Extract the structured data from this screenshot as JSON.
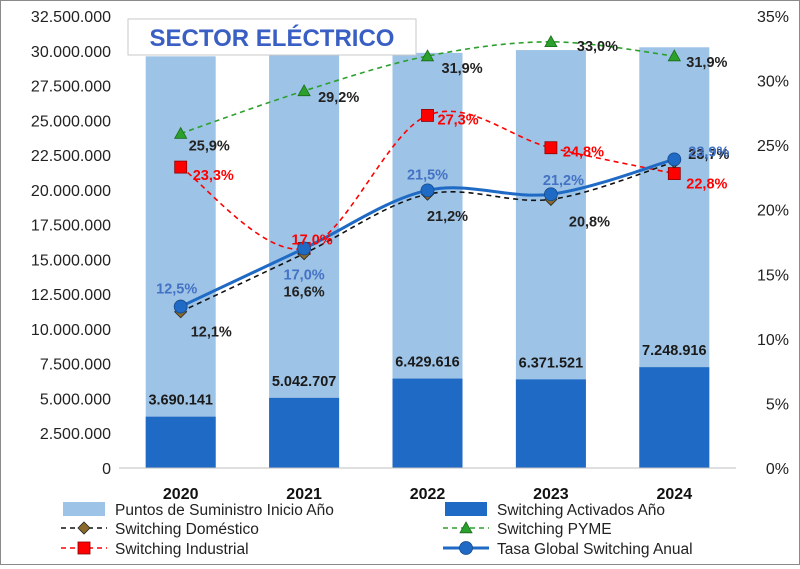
{
  "chart_data": {
    "type": "bar",
    "title": "SECTOR ELÉCTRICO",
    "categories": [
      "2020",
      "2021",
      "2022",
      "2023",
      "2024"
    ],
    "left_axis": {
      "min": 0,
      "max": 32500000,
      "step": 2500000,
      "tick_labels": [
        "0",
        "2.500.000",
        "5.000.000",
        "7.500.000",
        "10.000.000",
        "12.500.000",
        "15.000.000",
        "17.500.000",
        "20.000.000",
        "22.500.000",
        "25.000.000",
        "27.500.000",
        "30.000.000",
        "32.500.000"
      ]
    },
    "right_axis": {
      "min": 0,
      "max": 35,
      "step": 5,
      "tick_labels": [
        "0%",
        "5%",
        "10%",
        "15%",
        "20%",
        "25%",
        "30%",
        "35%"
      ]
    },
    "bar_series": [
      {
        "name": "Puntos de Suministro Inicio Año",
        "color": "#9dc3e6",
        "values": [
          29600000,
          29700000,
          29850000,
          30050000,
          30250000
        ]
      },
      {
        "name": "Switching Activados Año",
        "color": "#1f6ac4",
        "values": [
          3690141,
          5042707,
          6429616,
          6371521,
          7248916
        ],
        "labels": [
          "3.690.141",
          "5.042.707",
          "6.429.616",
          "6.371.521",
          "7.248.916"
        ]
      }
    ],
    "line_series": [
      {
        "name": "Switching Doméstico",
        "color": "#111111",
        "marker_color": "#8b6a2b",
        "dash": "dashed",
        "marker": "diamond",
        "values": [
          12.1,
          16.6,
          21.2,
          20.8,
          23.7
        ],
        "labels": [
          "12,1%",
          "16,6%",
          "21,2%",
          "20,8%",
          "23,7%"
        ]
      },
      {
        "name": "Switching PYME",
        "color": "#2ca02c",
        "dash": "dashed",
        "marker": "triangle",
        "values": [
          25.9,
          29.2,
          31.9,
          33.0,
          31.9
        ],
        "labels": [
          "25,9%",
          "29,2%",
          "31,9%",
          "33,0%",
          "31,9%"
        ]
      },
      {
        "name": "Switching Industrial",
        "color": "#ff0000",
        "dash": "dashed",
        "marker": "square",
        "values": [
          23.3,
          17.0,
          27.3,
          24.8,
          22.8
        ],
        "labels": [
          "23,3%",
          "17,0%",
          "27,3%",
          "24,8%",
          "22,8%"
        ]
      },
      {
        "name": "Tasa Global Switching Anual",
        "color": "#1f6ac4",
        "dash": "solid",
        "marker": "circle",
        "values": [
          12.5,
          17.0,
          21.5,
          21.2,
          23.9
        ],
        "labels": [
          "12,5%",
          "17,0%",
          "21,5%",
          "21,2%",
          "23,9%"
        ]
      }
    ],
    "legend_position": "bottom",
    "grid": false
  }
}
